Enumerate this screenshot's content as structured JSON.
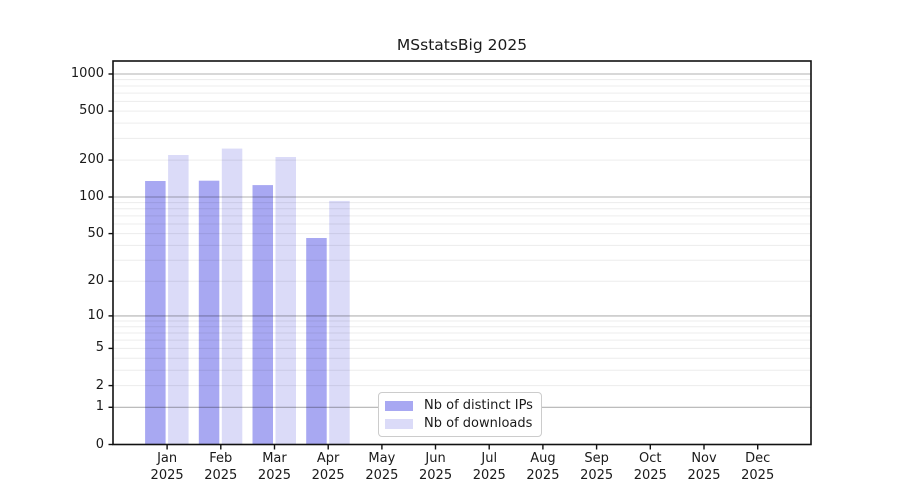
{
  "chart_data": {
    "type": "bar",
    "title": "MSstatsBig 2025",
    "months": [
      "Jan",
      "Feb",
      "Mar",
      "Apr",
      "May",
      "Jun",
      "Jul",
      "Aug",
      "Sep",
      "Oct",
      "Nov",
      "Dec"
    ],
    "year": "2025",
    "series": [
      {
        "name": "Nb of distinct IPs",
        "color": "#a8a8f2",
        "values": [
          135,
          136,
          125,
          46,
          0,
          0,
          0,
          0,
          0,
          0,
          0,
          0
        ]
      },
      {
        "name": "Nb of downloads",
        "color": "#dbdbf8",
        "values": [
          220,
          248,
          212,
          93,
          0,
          0,
          0,
          0,
          0,
          0,
          0,
          0
        ]
      }
    ],
    "yticks": [
      0,
      1,
      2,
      5,
      10,
      20,
      50,
      100,
      200,
      500,
      1000
    ],
    "yscale": "log1p",
    "ylim": [
      0,
      1000
    ],
    "grid": true,
    "legend_position": "lower-center",
    "axis_color": "#111111",
    "major_grid_values": [
      1,
      10,
      100,
      1000
    ]
  }
}
